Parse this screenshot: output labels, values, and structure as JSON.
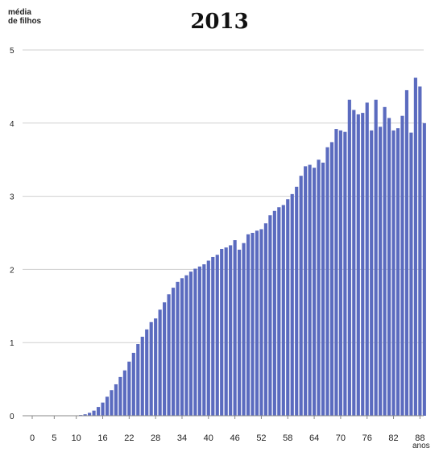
{
  "chart_data": {
    "type": "bar",
    "title": "2013",
    "ylabel": "média\nde filhos",
    "xlabel": "anos",
    "ylim": [
      0,
      5
    ],
    "yticks": [
      0,
      1,
      2,
      3,
      4,
      5
    ],
    "xticks": [
      0,
      5,
      10,
      16,
      22,
      28,
      34,
      40,
      46,
      52,
      58,
      64,
      70,
      76,
      82,
      88
    ],
    "x_start": 0,
    "grid": true,
    "bar_color": "#5b6bbf",
    "values": [
      0,
      0,
      0,
      0,
      0,
      0,
      0,
      0,
      0,
      0,
      0,
      0.01,
      0.02,
      0.04,
      0.07,
      0.12,
      0.18,
      0.26,
      0.35,
      0.43,
      0.53,
      0.62,
      0.74,
      0.86,
      0.98,
      1.08,
      1.18,
      1.28,
      1.33,
      1.45,
      1.55,
      1.66,
      1.75,
      1.83,
      1.88,
      1.92,
      1.97,
      2.01,
      2.04,
      2.07,
      2.12,
      2.17,
      2.2,
      2.28,
      2.3,
      2.33,
      2.4,
      2.27,
      2.36,
      2.48,
      2.5,
      2.53,
      2.55,
      2.63,
      2.74,
      2.8,
      2.85,
      2.88,
      2.96,
      3.03,
      3.13,
      3.28,
      3.41,
      3.43,
      3.39,
      3.5,
      3.46,
      3.67,
      3.74,
      3.92,
      3.9,
      3.88,
      4.32,
      4.18,
      4.12,
      4.14,
      4.28,
      3.9,
      4.32,
      3.95,
      4.22,
      4.07,
      3.9,
      3.93,
      4.1,
      4.45,
      3.87,
      4.62,
      4.5,
      4.0
    ]
  }
}
